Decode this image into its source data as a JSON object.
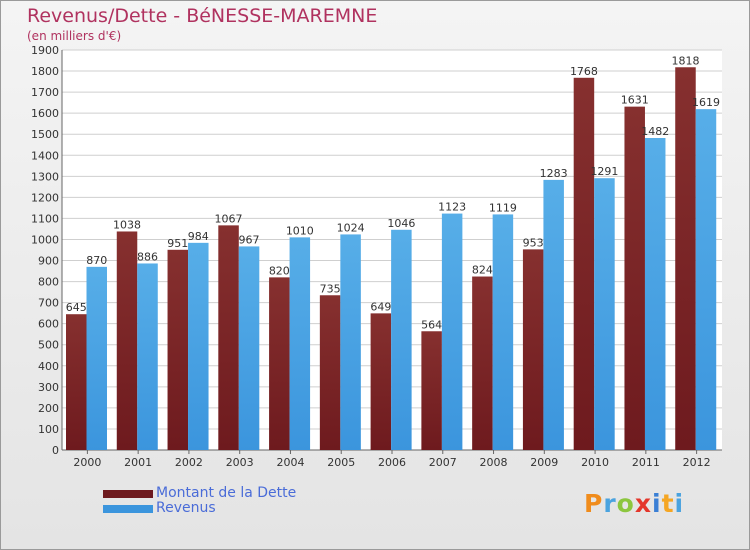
{
  "chart_data": {
    "type": "bar",
    "title": "Revenus/Dette - BéNESSE-MAREMNE",
    "subtitle": "(en milliers d'€)",
    "categories": [
      "2000",
      "2001",
      "2002",
      "2003",
      "2004",
      "2005",
      "2006",
      "2007",
      "2008",
      "2009",
      "2010",
      "2011",
      "2012"
    ],
    "series": [
      {
        "name": "Montant de la Dette",
        "color": "#6e1a1e",
        "values": [
          645,
          1038,
          951,
          1067,
          820,
          735,
          649,
          564,
          824,
          953,
          1768,
          1631,
          1818
        ]
      },
      {
        "name": "Revenus",
        "color": "#3b95dd",
        "values": [
          870,
          886,
          984,
          967,
          1010,
          1024,
          1046,
          1123,
          1119,
          1283,
          1291,
          1482,
          1619
        ]
      }
    ],
    "ylim": [
      0,
      1900
    ],
    "yticks": [
      0,
      100,
      200,
      300,
      400,
      500,
      600,
      700,
      800,
      900,
      1000,
      1100,
      1200,
      1300,
      1400,
      1500,
      1600,
      1700,
      1800,
      1900
    ],
    "grid": true,
    "legend_position": "bottom-left"
  },
  "logo": {
    "text": "Proxiti",
    "colors": [
      "#f08c1c",
      "#4aa3df",
      "#8cc63f",
      "#e4362b",
      "#3a7fd5",
      "#f5a623",
      "#4aa3df"
    ]
  }
}
